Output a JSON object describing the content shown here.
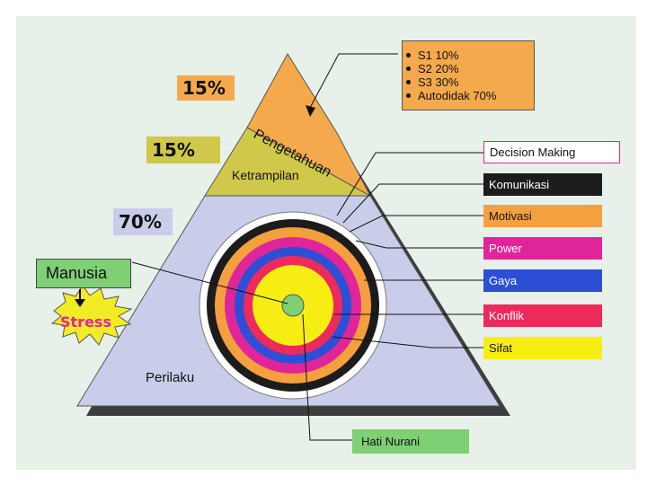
{
  "diagram": {
    "layers": {
      "top": {
        "label": "Pengetahuan",
        "percent": "15%",
        "color": "#f4a94c"
      },
      "middle": {
        "label": "Ketrampilan",
        "percent": "15%",
        "color": "#cfc84a"
      },
      "bottom": {
        "label": "Perilaku",
        "percent": "70%",
        "color": "#c9cdea"
      }
    },
    "education": [
      "S1 10%",
      "S2 20%",
      "S3 30%",
      "Autodidak 70%"
    ],
    "manusia": "Manusia",
    "stress": "Stress",
    "hati_nurani": "Hati Nurani",
    "rings": [
      {
        "label": "Decision Making",
        "color": "#ffffff",
        "text_color": "#111111"
      },
      {
        "label": "Komunikasi",
        "color": "#1c1c1c",
        "text_color": "#ffffff"
      },
      {
        "label": "Motivasi",
        "color": "#f5a03e",
        "text_color": "#111111"
      },
      {
        "label": "Power",
        "color": "#e0259a",
        "text_color": "#ffffff"
      },
      {
        "label": "Gaya",
        "color": "#2d4fd6",
        "text_color": "#ffffff"
      },
      {
        "label": "Konflik",
        "color": "#ee2a5d",
        "text_color": "#ffffff"
      },
      {
        "label": "Sifat",
        "color": "#f6ee13",
        "text_color": "#111111"
      }
    ],
    "core_color": "#7fcf74"
  }
}
